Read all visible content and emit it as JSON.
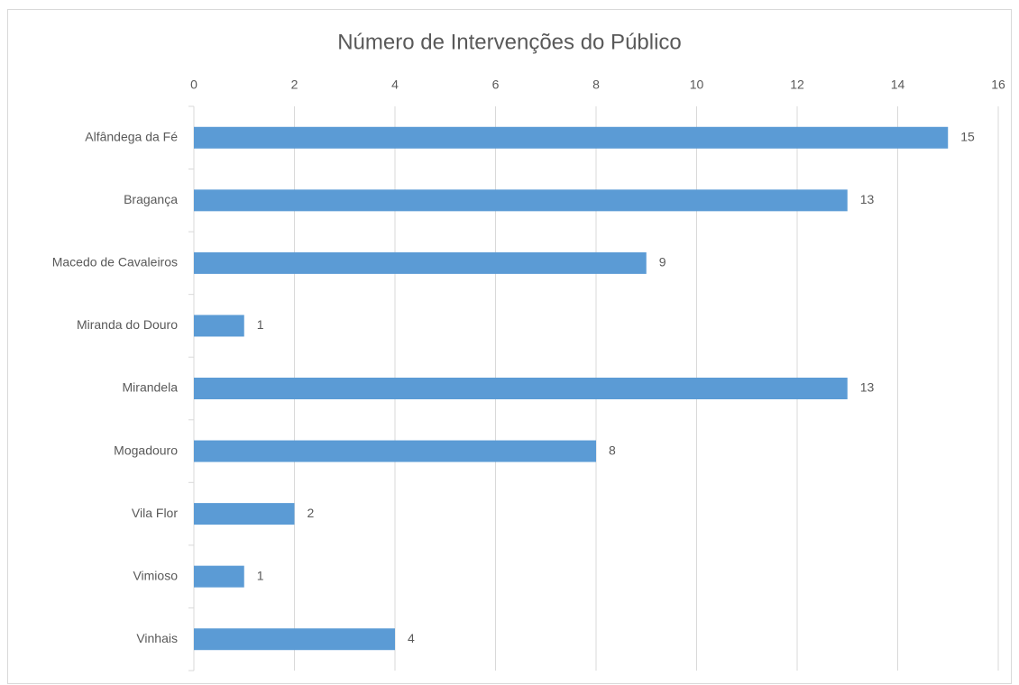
{
  "chart_data": {
    "type": "bar",
    "orientation": "horizontal",
    "title": "Número de Intervenções do Público",
    "categories": [
      "Alfândega da Fé",
      "Bragança",
      "Macedo de Cavaleiros",
      "Miranda do Douro",
      "Mirandela",
      "Mogadouro",
      "Vila Flor",
      "Vimioso",
      "Vinhais"
    ],
    "values": [
      15,
      13,
      9,
      1,
      13,
      8,
      2,
      1,
      4
    ],
    "color": "#5b9bd5",
    "xlim": [
      0,
      16
    ],
    "xticks": [
      0,
      2,
      4,
      6,
      8,
      10,
      12,
      14,
      16
    ],
    "grid": true
  }
}
